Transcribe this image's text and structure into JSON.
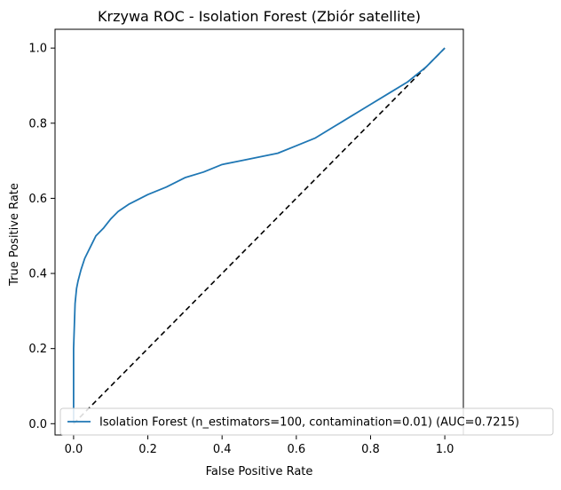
{
  "chart_data": {
    "type": "line",
    "title": "Krzywa ROC - Isolation Forest (Zbiór satellite)",
    "xlabel": "False Positive Rate",
    "ylabel": "True Positive Rate",
    "xlim": [
      -0.05,
      1.05
    ],
    "ylim": [
      -0.03,
      1.05
    ],
    "xticks": [
      0.0,
      0.2,
      0.4,
      0.6,
      0.8,
      1.0
    ],
    "yticks": [
      0.0,
      0.2,
      0.4,
      0.6,
      0.8,
      1.0
    ],
    "xtick_labels": [
      "0.0",
      "0.2",
      "0.4",
      "0.6",
      "0.8",
      "1.0"
    ],
    "ytick_labels": [
      "0.0",
      "0.2",
      "0.4",
      "0.6",
      "0.8",
      "1.0"
    ],
    "grid": false,
    "legend_position": "lower-right",
    "series": [
      {
        "name": "Isolation Forest (n_estimators=100, contamination=0.01) (AUC=0.7215)",
        "color": "#1f77b4",
        "line_style": "solid",
        "x": [
          0.0,
          0.0,
          0.004,
          0.008,
          0.012,
          0.02,
          0.03,
          0.04,
          0.05,
          0.06,
          0.08,
          0.1,
          0.12,
          0.15,
          0.2,
          0.25,
          0.3,
          0.35,
          0.4,
          0.45,
          0.5,
          0.55,
          0.6,
          0.65,
          0.7,
          0.75,
          0.8,
          0.85,
          0.9,
          0.95,
          1.0
        ],
        "y": [
          0.0,
          0.2,
          0.32,
          0.36,
          0.38,
          0.41,
          0.44,
          0.46,
          0.48,
          0.5,
          0.52,
          0.545,
          0.565,
          0.585,
          0.61,
          0.63,
          0.655,
          0.67,
          0.69,
          0.7,
          0.71,
          0.72,
          0.74,
          0.76,
          0.79,
          0.82,
          0.85,
          0.88,
          0.91,
          0.95,
          1.0
        ]
      }
    ],
    "reference_line": {
      "x": [
        0.0,
        1.0
      ],
      "y": [
        0.0,
        1.0
      ],
      "color": "#000000",
      "line_style": "dashed"
    }
  }
}
